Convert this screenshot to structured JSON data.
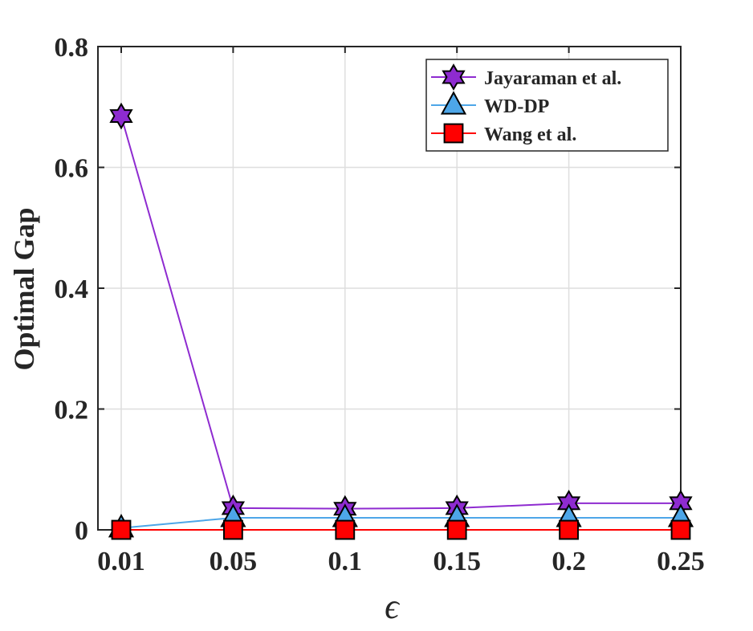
{
  "chart_data": {
    "type": "line",
    "xlabel": "ϵ",
    "ylabel": "Optimal Gap",
    "categories": [
      "0.01",
      "0.05",
      "0.1",
      "0.15",
      "0.2",
      "0.25"
    ],
    "yticks": [
      "0",
      "0.2",
      "0.4",
      "0.6",
      "0.8"
    ],
    "ylim": [
      0,
      0.8
    ],
    "grid": true,
    "legend_position": "top-right",
    "series": [
      {
        "name": "Jayaraman et al.",
        "values": [
          0.685,
          0.036,
          0.035,
          0.036,
          0.044,
          0.044
        ],
        "color": "#8e2bd0",
        "marker": "hexagram"
      },
      {
        "name": "WD-DP",
        "values": [
          0.003,
          0.02,
          0.02,
          0.02,
          0.02,
          0.02
        ],
        "color": "#4da6e8",
        "marker": "triangle"
      },
      {
        "name": "Wang et al.",
        "values": [
          0.0,
          0.0,
          0.0,
          0.0,
          0.0,
          0.0
        ],
        "color": "#ff0000",
        "marker": "square"
      }
    ]
  }
}
